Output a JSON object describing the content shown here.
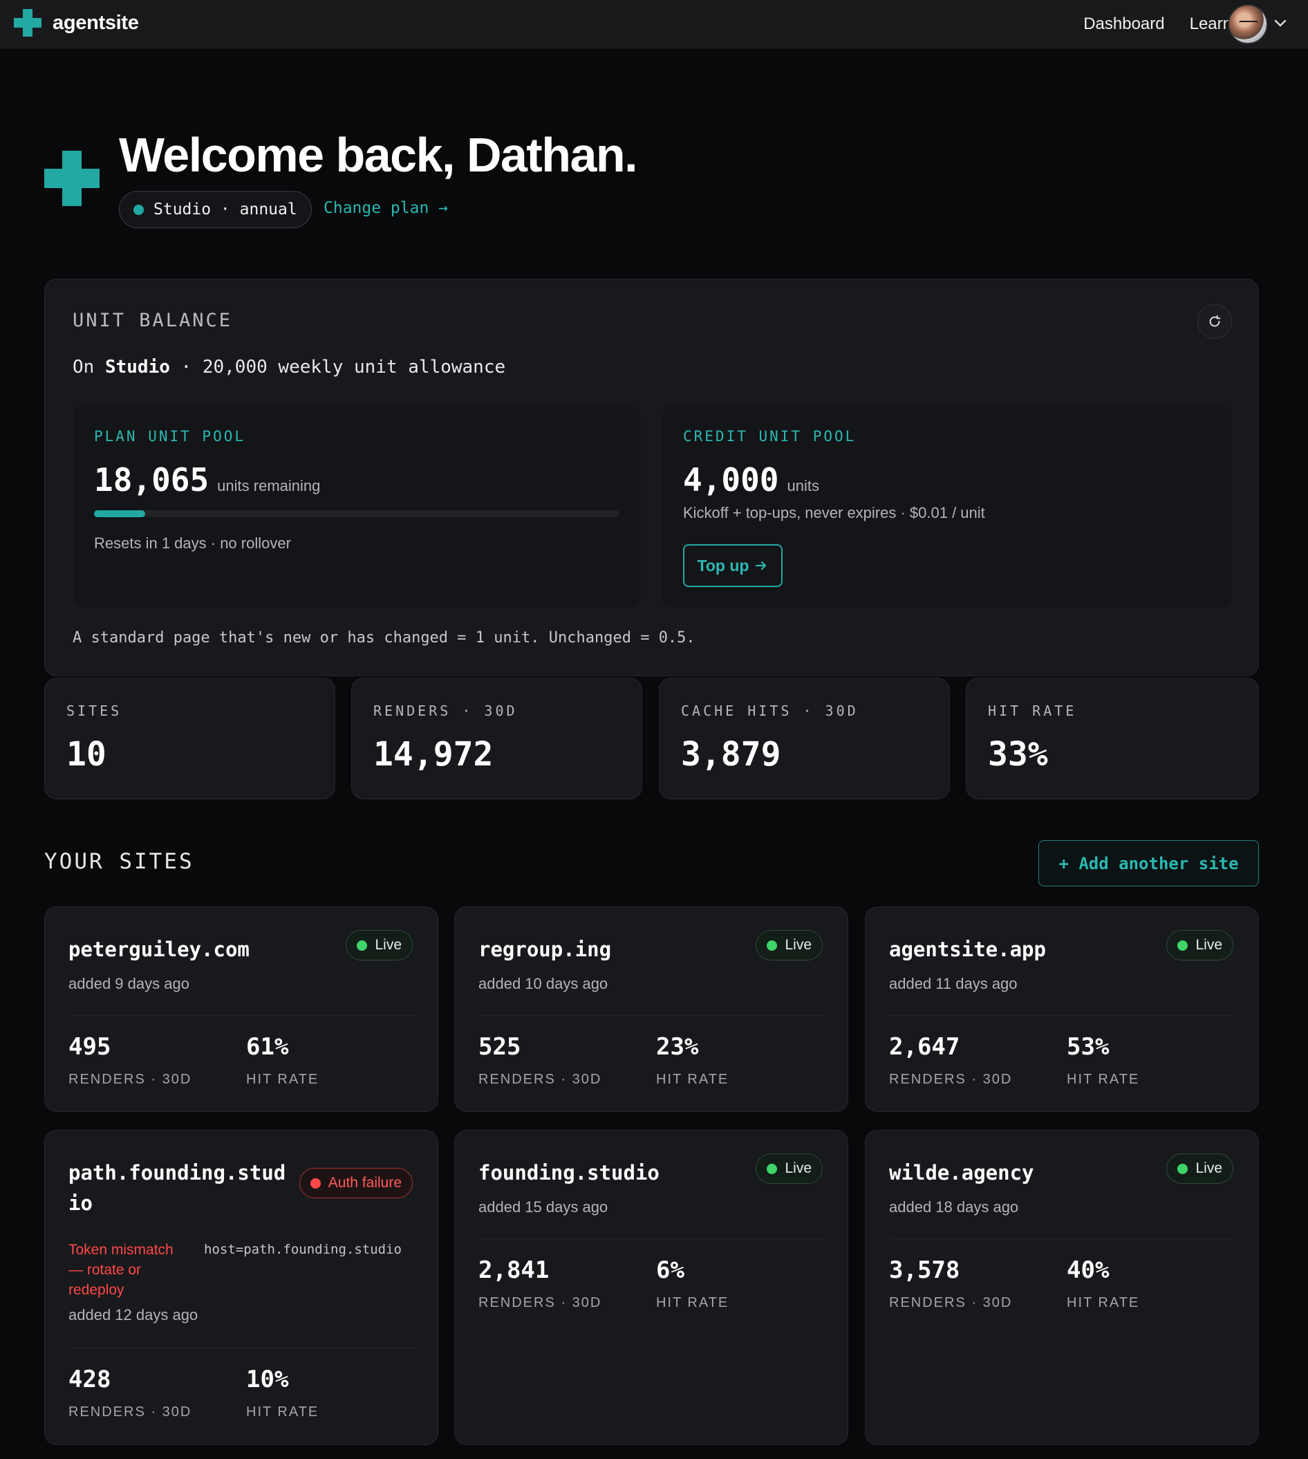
{
  "nav": {
    "brand": "agentsite",
    "links": [
      "Dashboard",
      "Learn"
    ]
  },
  "colors": {
    "accent": "#22a9a3",
    "live": "#3fd46a",
    "error": "#ff4848",
    "background": "#08090b",
    "card": "#18191c"
  },
  "hero": {
    "title": "Welcome back, Dathan.",
    "plan": "Studio · annual",
    "change_plan": "Change plan →"
  },
  "balance": {
    "title": "UNIT BALANCE",
    "summary_prefix": "On ",
    "summary_plan": "Studio",
    "summary_suffix": " · 20,000 weekly unit allowance",
    "plan_pool": {
      "label": "PLAN UNIT POOL",
      "value": "18,065",
      "unit": "units remaining",
      "progress_fraction": 0.097,
      "note": "Resets in 1 days · no rollover"
    },
    "credit_pool": {
      "label": "CREDIT UNIT POOL",
      "value": "4,000",
      "unit": "units",
      "note": "Kickoff + top-ups, never expires · $0.01 / unit",
      "button": "Top up"
    },
    "footnote": "A standard page that's new or has changed = 1 unit. Unchanged = 0.5."
  },
  "stats": [
    {
      "label": "SITES",
      "value": "10"
    },
    {
      "label": "RENDERS · 30D",
      "value": "14,972"
    },
    {
      "label": "CACHE HITS · 30D",
      "value": "3,879"
    },
    {
      "label": "HIT RATE",
      "value": "33%"
    }
  ],
  "sites_section": {
    "title": "YOUR SITES",
    "add_button": "+ Add another site",
    "renders_label": "RENDERS · 30D",
    "hit_label": "HIT RATE",
    "sites": [
      {
        "name": "peterguiley.com",
        "status": "Live",
        "added": "added 9 days ago",
        "renders": "495",
        "hit_rate": "61%"
      },
      {
        "name": "regroup.ing",
        "status": "Live",
        "added": "added 10 days ago",
        "renders": "525",
        "hit_rate": "23%"
      },
      {
        "name": "agentsite.app",
        "status": "Live",
        "added": "added 11 days ago",
        "renders": "2,647",
        "hit_rate": "53%"
      },
      {
        "name": "path.founding.studio",
        "name_line1": "path.founding.stud",
        "name_line2": "io",
        "status": "Auth failure",
        "error": "Token mismatch — rotate or redeploy",
        "error_line1": "Token mismatch",
        "error_line2": "— rotate or",
        "error_line3": "redeploy",
        "host": "host=path.founding.studio",
        "added": "added 12 days ago",
        "renders": "428",
        "hit_rate": "10%"
      },
      {
        "name": "founding.studio",
        "status": "Live",
        "added": "added 15 days ago",
        "renders": "2,841",
        "hit_rate": "6%"
      },
      {
        "name": "wilde.agency",
        "status": "Live",
        "added": "added 18 days ago",
        "renders": "3,578",
        "hit_rate": "40%"
      }
    ]
  }
}
